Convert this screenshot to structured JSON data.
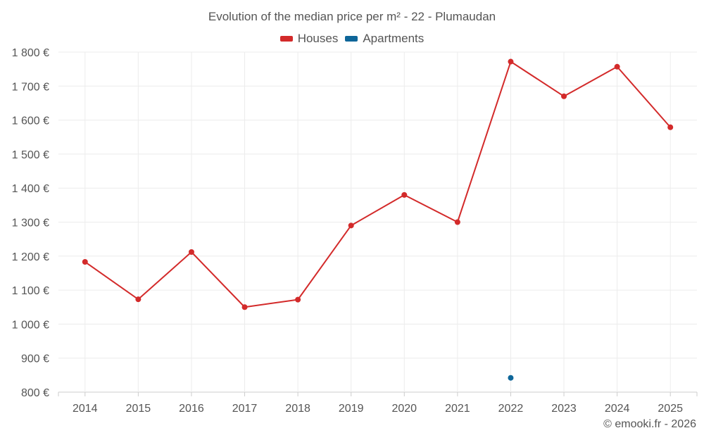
{
  "title": "Evolution of the median price per m² - 22 - Plumaudan",
  "credit": "© emooki.fr - 2026",
  "legend": [
    {
      "label": "Houses",
      "color": "#d32a2a"
    },
    {
      "label": "Apartments",
      "color": "#0e6699"
    }
  ],
  "chart_data": {
    "type": "line",
    "title": "Evolution of the median price per m² - 22 - Plumaudan",
    "xlabel": "",
    "ylabel": "",
    "categories": [
      "2014",
      "2015",
      "2016",
      "2017",
      "2018",
      "2019",
      "2020",
      "2021",
      "2022",
      "2023",
      "2024",
      "2025"
    ],
    "ylim": [
      800,
      1800
    ],
    "yticks": [
      800,
      900,
      1000,
      1100,
      1200,
      1300,
      1400,
      1500,
      1600,
      1700,
      1800
    ],
    "ytick_labels": [
      "800 €",
      "900 €",
      "1 000 €",
      "1 100 €",
      "1 200 €",
      "1 300 €",
      "1 400 €",
      "1 500 €",
      "1 600 €",
      "1 700 €",
      "1 800 €"
    ],
    "grid": true,
    "legend_position": "top-center",
    "series": [
      {
        "name": "Houses",
        "color": "#d32a2a",
        "values": [
          1183,
          1073,
          1212,
          1050,
          1072,
          1290,
          1380,
          1300,
          1772,
          1670,
          1757,
          1579
        ]
      },
      {
        "name": "Apartments",
        "color": "#0e6699",
        "values": [
          null,
          null,
          null,
          null,
          null,
          null,
          null,
          null,
          842,
          null,
          null,
          null
        ]
      }
    ]
  }
}
